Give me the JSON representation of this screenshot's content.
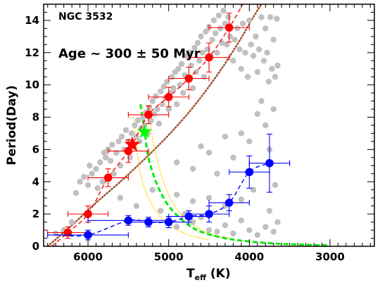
{
  "chart_data": {
    "type": "scatter",
    "cluster_label": "NGC 3532",
    "age_label": "Age ~ 300 ± 50 Myr",
    "xlabel_main": "T",
    "xlabel_sub": "eff",
    "xlabel_unit": " (K)",
    "ylabel": "Period(Day)",
    "x_reversed": true,
    "xlim": [
      6550,
      2450
    ],
    "ylim": [
      0,
      15
    ],
    "xticks": [
      6000,
      5000,
      4000,
      3000
    ],
    "yticks": [
      0,
      2,
      4,
      6,
      8,
      10,
      12,
      14
    ],
    "grid": false,
    "colors": {
      "background_points": "#c0c0c0",
      "upper_sequence": "#ff0000",
      "lower_sequence": "#0000ff",
      "red_star": "#ff0000",
      "green_star": "#00ff00",
      "green_curve": "#00ee00",
      "yellow_curves": "#ffe040",
      "brown_curve": "#a0522d"
    },
    "background_points": [
      [
        6400,
        0.8
      ],
      [
        6300,
        1.0
      ],
      [
        6200,
        1.5
      ],
      [
        6150,
        3.3
      ],
      [
        6100,
        4.0
      ],
      [
        6050,
        4.3
      ],
      [
        6000,
        3.8
      ],
      [
        5980,
        5.0
      ],
      [
        5950,
        4.5
      ],
      [
        5900,
        4.8
      ],
      [
        5880,
        3.6
      ],
      [
        5850,
        5.2
      ],
      [
        5820,
        4.0
      ],
      [
        5800,
        5.8
      ],
      [
        5780,
        5.5
      ],
      [
        5750,
        6.0
      ],
      [
        5720,
        5.3
      ],
      [
        5700,
        6.3
      ],
      [
        5680,
        4.5
      ],
      [
        5650,
        5.8
      ],
      [
        5620,
        6.5
      ],
      [
        5600,
        5.0
      ],
      [
        5580,
        6.8
      ],
      [
        5550,
        6.0
      ],
      [
        5530,
        7.2
      ],
      [
        5500,
        6.5
      ],
      [
        5480,
        5.5
      ],
      [
        5460,
        7.0
      ],
      [
        5440,
        6.2
      ],
      [
        5420,
        7.5
      ],
      [
        5400,
        6.8
      ],
      [
        5380,
        7.8
      ],
      [
        5360,
        6.5
      ],
      [
        5340,
        7.3
      ],
      [
        5320,
        8.0
      ],
      [
        5300,
        7.5
      ],
      [
        5280,
        8.3
      ],
      [
        5260,
        7.0
      ],
      [
        5240,
        8.6
      ],
      [
        5220,
        7.8
      ],
      [
        5200,
        9.0
      ],
      [
        5180,
        8.2
      ],
      [
        5160,
        9.3
      ],
      [
        5140,
        8.5
      ],
      [
        5120,
        7.6
      ],
      [
        5100,
        9.6
      ],
      [
        5080,
        8.8
      ],
      [
        5060,
        9.9
      ],
      [
        5040,
        9.2
      ],
      [
        5020,
        10.2
      ],
      [
        5000,
        8.5
      ],
      [
        4980,
        9.5
      ],
      [
        4960,
        10.5
      ],
      [
        4940,
        9.8
      ],
      [
        4920,
        10.8
      ],
      [
        4900,
        8.8
      ],
      [
        4880,
        11.0
      ],
      [
        4860,
        10.0
      ],
      [
        4840,
        11.3
      ],
      [
        4820,
        9.5
      ],
      [
        4800,
        10.6
      ],
      [
        4780,
        11.8
      ],
      [
        4760,
        10.3
      ],
      [
        4740,
        12.0
      ],
      [
        4720,
        11.2
      ],
      [
        4700,
        9.8
      ],
      [
        4680,
        12.3
      ],
      [
        4660,
        10.8
      ],
      [
        4640,
        12.6
      ],
      [
        4620,
        11.5
      ],
      [
        4600,
        13.0
      ],
      [
        4580,
        12.0
      ],
      [
        4560,
        10.5
      ],
      [
        4540,
        13.3
      ],
      [
        4520,
        12.2
      ],
      [
        4500,
        13.6
      ],
      [
        4480,
        11.8
      ],
      [
        4460,
        12.8
      ],
      [
        4440,
        14.0
      ],
      [
        4420,
        13.2
      ],
      [
        4400,
        12.0
      ],
      [
        4380,
        14.3
      ],
      [
        4360,
        13.5
      ],
      [
        4340,
        12.6
      ],
      [
        4320,
        14.6
      ],
      [
        4300,
        13.8
      ],
      [
        4280,
        12.5
      ],
      [
        4260,
        14.2
      ],
      [
        4240,
        13.0
      ],
      [
        4200,
        11.5
      ],
      [
        4180,
        12.8
      ],
      [
        4150,
        13.5
      ],
      [
        4120,
        12.2
      ],
      [
        4100,
        11.0
      ],
      [
        4080,
        13.8
      ],
      [
        4050,
        12.0
      ],
      [
        4020,
        10.5
      ],
      [
        4000,
        14.0
      ],
      [
        3980,
        12.5
      ],
      [
        3950,
        11.8
      ],
      [
        3920,
        13.0
      ],
      [
        3900,
        10.8
      ],
      [
        3880,
        12.2
      ],
      [
        3850,
        14.2
      ],
      [
        3820,
        11.5
      ],
      [
        3800,
        13.5
      ],
      [
        3780,
        12.0
      ],
      [
        3760,
        10.2
      ],
      [
        3740,
        14.2
      ],
      [
        3720,
        11.0
      ],
      [
        3700,
        12.8
      ],
      [
        3680,
        10.5
      ],
      [
        3660,
        14.1
      ],
      [
        3650,
        11.2
      ],
      [
        4900,
        5.2
      ],
      [
        4700,
        4.8
      ],
      [
        4600,
        6.2
      ],
      [
        4500,
        5.8
      ],
      [
        4400,
        4.5
      ],
      [
        4300,
        6.8
      ],
      [
        4200,
        5.5
      ],
      [
        4100,
        7.0
      ],
      [
        4000,
        6.5
      ],
      [
        3900,
        8.2
      ],
      [
        3850,
        9.0
      ],
      [
        3800,
        7.5
      ],
      [
        3750,
        6.0
      ],
      [
        3700,
        8.5
      ],
      [
        5100,
        2.2
      ],
      [
        5000,
        1.7
      ],
      [
        4900,
        1.2
      ],
      [
        4800,
        2.0
      ],
      [
        4700,
        1.5
      ],
      [
        4600,
        1.8
      ],
      [
        4500,
        1.0
      ],
      [
        4400,
        0.9
      ],
      [
        4300,
        1.3
      ],
      [
        4200,
        0.8
      ],
      [
        4100,
        1.6
      ],
      [
        4000,
        1.0
      ],
      [
        3900,
        0.7
      ],
      [
        3800,
        1.2
      ],
      [
        3700,
        0.9
      ],
      [
        3650,
        1.5
      ],
      [
        4900,
        3.2
      ],
      [
        4700,
        2.8
      ],
      [
        4500,
        3.0
      ],
      [
        4300,
        2.5
      ],
      [
        4100,
        2.9
      ],
      [
        3950,
        3.5
      ],
      [
        3750,
        2.2
      ],
      [
        3680,
        3.8
      ],
      [
        5400,
        2.5
      ],
      [
        5200,
        3.5
      ],
      [
        5600,
        3.0
      ]
    ],
    "upper_sequence": [
      {
        "x": 6250,
        "y": 0.85,
        "xerr": 250,
        "yerr": 0.35
      },
      {
        "x": 6000,
        "y": 2.0,
        "xerr": 250,
        "yerr": 0.5
      },
      {
        "x": 5750,
        "y": 4.25,
        "xerr": 250,
        "yerr": 0.55
      },
      {
        "x": 5500,
        "y": 5.9,
        "xerr": 250,
        "yerr": 0.7
      },
      {
        "x": 5250,
        "y": 8.15,
        "xerr": 250,
        "yerr": 0.55
      },
      {
        "x": 5000,
        "y": 9.25,
        "xerr": 250,
        "yerr": 0.6
      },
      {
        "x": 4750,
        "y": 10.4,
        "xerr": 250,
        "yerr": 0.7
      },
      {
        "x": 4500,
        "y": 11.7,
        "xerr": 250,
        "yerr": 0.9
      },
      {
        "x": 4250,
        "y": 13.55,
        "xerr": 250,
        "yerr": 0.9
      }
    ],
    "lower_sequence": [
      {
        "x": 6000,
        "y": 0.7,
        "xerr": 500,
        "yerr": 0.3
      },
      {
        "x": 5500,
        "y": 1.6,
        "xerr": 500,
        "yerr": 0.3
      },
      {
        "x": 5250,
        "y": 1.5,
        "xerr": 250,
        "yerr": 0.3
      },
      {
        "x": 5000,
        "y": 1.5,
        "xerr": 250,
        "yerr": 0.35
      },
      {
        "x": 4750,
        "y": 1.85,
        "xerr": 250,
        "yerr": 0.35
      },
      {
        "x": 4500,
        "y": 2.0,
        "xerr": 250,
        "yerr": 0.5
      },
      {
        "x": 4250,
        "y": 2.7,
        "xerr": 250,
        "yerr": 0.5
      },
      {
        "x": 4000,
        "y": 4.6,
        "xerr": 250,
        "yerr": 1.0
      },
      {
        "x": 3750,
        "y": 5.15,
        "xerr": 250,
        "yerr": 1.8
      }
    ],
    "red_star": {
      "x": 5450,
      "y": 6.3
    },
    "green_star": {
      "x": 5300,
      "y": 7.1
    },
    "upper_fit": [
      [
        6450,
        0.0
      ],
      [
        6250,
        0.85
      ],
      [
        6000,
        2.0
      ],
      [
        5750,
        4.25
      ],
      [
        5500,
        5.9
      ],
      [
        5250,
        8.15
      ],
      [
        5000,
        9.25
      ],
      [
        4750,
        10.4
      ],
      [
        4500,
        11.7
      ],
      [
        4250,
        13.55
      ],
      [
        4080,
        15.0
      ]
    ],
    "lower_fit": [
      [
        6400,
        0.7
      ],
      [
        6000,
        0.7
      ],
      [
        5500,
        1.6
      ],
      [
        5250,
        1.5
      ],
      [
        5000,
        1.5
      ],
      [
        4750,
        1.85
      ],
      [
        4500,
        2.0
      ],
      [
        4250,
        2.7
      ],
      [
        4000,
        4.6
      ],
      [
        3750,
        5.15
      ]
    ],
    "brown_curve": [
      [
        6500,
        0.0
      ],
      [
        6200,
        1.3
      ],
      [
        5900,
        2.7
      ],
      [
        5600,
        4.0
      ],
      [
        5300,
        5.4
      ],
      [
        5000,
        6.9
      ],
      [
        4700,
        8.6
      ],
      [
        4400,
        10.6
      ],
      [
        4150,
        12.5
      ],
      [
        3950,
        14.2
      ],
      [
        3850,
        15.0
      ]
    ],
    "green_curve": [
      [
        5350,
        8.8
      ],
      [
        5300,
        7.2
      ],
      [
        5250,
        5.5
      ],
      [
        5150,
        3.9
      ],
      [
        5000,
        2.5
      ],
      [
        4800,
        1.5
      ],
      [
        4600,
        0.9
      ],
      [
        4300,
        0.5
      ],
      [
        4000,
        0.3
      ],
      [
        3600,
        0.15
      ],
      [
        3000,
        0.05
      ]
    ],
    "yellow_curve_a": [
      [
        5440,
        8.0
      ],
      [
        5400,
        6.3
      ],
      [
        5350,
        4.5
      ],
      [
        5250,
        3.0
      ],
      [
        5100,
        1.8
      ],
      [
        4950,
        1.2
      ],
      [
        4750,
        0.7
      ],
      [
        4500,
        0.4
      ]
    ],
    "yellow_curve_b": [
      [
        5240,
        8.4
      ],
      [
        5200,
        6.7
      ],
      [
        5100,
        4.6
      ],
      [
        5000,
        3.2
      ],
      [
        4850,
        2.0
      ],
      [
        4650,
        1.2
      ],
      [
        4450,
        0.7
      ],
      [
        4250,
        0.5
      ]
    ]
  }
}
